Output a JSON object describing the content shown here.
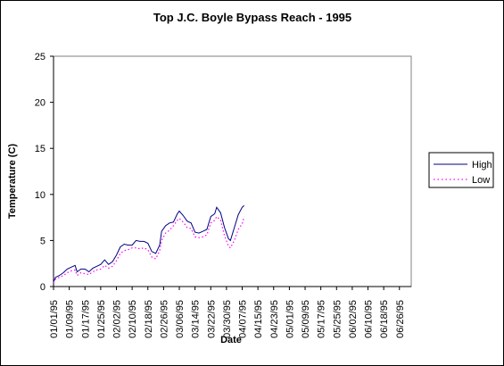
{
  "chart_data": {
    "type": "line",
    "title": "Top J.C. Boyle Bypass Reach - 1995",
    "xlabel": "Date",
    "ylabel": "Temperature (C)",
    "ylim": [
      0,
      25
    ],
    "yticks": [
      0,
      5,
      10,
      15,
      20,
      25
    ],
    "x_tick_labels": [
      "01/01/95",
      "01/09/95",
      "01/17/95",
      "01/25/95",
      "02/02/95",
      "02/10/95",
      "02/18/95",
      "02/26/95",
      "03/06/95",
      "03/14/95",
      "03/22/95",
      "03/30/95",
      "04/07/95",
      "04/15/95",
      "04/23/95",
      "05/01/95",
      "05/09/95",
      "05/17/95",
      "05/25/95",
      "06/02/95",
      "06/10/95",
      "06/18/95",
      "06/26/95"
    ],
    "x_day_range": [
      0,
      182
    ],
    "grid": false,
    "legend_position": "right",
    "series": [
      {
        "name": "High",
        "color": "#000080",
        "style": "solid",
        "points": [
          [
            0,
            0.5
          ],
          [
            1,
            1
          ],
          [
            3,
            1.2
          ],
          [
            5,
            1.5
          ],
          [
            7,
            1.9
          ],
          [
            9,
            2.1
          ],
          [
            11,
            2.3
          ],
          [
            12,
            1.6
          ],
          [
            14,
            1.9
          ],
          [
            16,
            1.9
          ],
          [
            18,
            1.6
          ],
          [
            20,
            2.0
          ],
          [
            22,
            2.2
          ],
          [
            24,
            2.4
          ],
          [
            26,
            2.9
          ],
          [
            28,
            2.4
          ],
          [
            30,
            2.7
          ],
          [
            32,
            3.4
          ],
          [
            34,
            4.3
          ],
          [
            36,
            4.6
          ],
          [
            38,
            4.5
          ],
          [
            40,
            4.5
          ],
          [
            42,
            5.0
          ],
          [
            44,
            4.9
          ],
          [
            46,
            4.9
          ],
          [
            48,
            4.7
          ],
          [
            50,
            3.8
          ],
          [
            52,
            3.6
          ],
          [
            54,
            4.5
          ],
          [
            55,
            6.0
          ],
          [
            57,
            6.6
          ],
          [
            59,
            6.9
          ],
          [
            61,
            7.0
          ],
          [
            63,
            7.9
          ],
          [
            64,
            8.2
          ],
          [
            66,
            7.7
          ],
          [
            68,
            7.1
          ],
          [
            70,
            6.9
          ],
          [
            72,
            5.9
          ],
          [
            74,
            5.8
          ],
          [
            76,
            6.0
          ],
          [
            78,
            6.2
          ],
          [
            80,
            7.6
          ],
          [
            82,
            7.9
          ],
          [
            83,
            8.6
          ],
          [
            85,
            8.0
          ],
          [
            87,
            6.4
          ],
          [
            89,
            5.2
          ],
          [
            90,
            5.0
          ],
          [
            92,
            6.4
          ],
          [
            94,
            7.8
          ],
          [
            96,
            8.6
          ],
          [
            97,
            8.8
          ]
        ]
      },
      {
        "name": "Low",
        "color": "#ff00ff",
        "style": "dotted",
        "points": [
          [
            0,
            0.4
          ],
          [
            1,
            0.8
          ],
          [
            3,
            1.0
          ],
          [
            5,
            1.2
          ],
          [
            7,
            1.5
          ],
          [
            9,
            1.7
          ],
          [
            11,
            1.8
          ],
          [
            12,
            1.2
          ],
          [
            14,
            1.5
          ],
          [
            16,
            1.4
          ],
          [
            18,
            1.3
          ],
          [
            20,
            1.6
          ],
          [
            22,
            1.8
          ],
          [
            24,
            1.9
          ],
          [
            26,
            2.3
          ],
          [
            28,
            2.0
          ],
          [
            30,
            2.2
          ],
          [
            32,
            2.8
          ],
          [
            34,
            3.6
          ],
          [
            36,
            3.9
          ],
          [
            38,
            4.0
          ],
          [
            40,
            4.2
          ],
          [
            42,
            4.2
          ],
          [
            44,
            4.1
          ],
          [
            46,
            4.2
          ],
          [
            48,
            4.0
          ],
          [
            50,
            3.2
          ],
          [
            52,
            3.0
          ],
          [
            54,
            3.9
          ],
          [
            55,
            5.0
          ],
          [
            57,
            5.8
          ],
          [
            59,
            6.1
          ],
          [
            61,
            6.6
          ],
          [
            63,
            7.2
          ],
          [
            64,
            7.4
          ],
          [
            66,
            7.0
          ],
          [
            68,
            6.4
          ],
          [
            70,
            6.3
          ],
          [
            72,
            5.4
          ],
          [
            74,
            5.3
          ],
          [
            76,
            5.4
          ],
          [
            78,
            5.6
          ],
          [
            80,
            6.9
          ],
          [
            82,
            7.2
          ],
          [
            83,
            7.6
          ],
          [
            85,
            7.2
          ],
          [
            87,
            5.5
          ],
          [
            89,
            4.4
          ],
          [
            90,
            4.2
          ],
          [
            92,
            5.0
          ],
          [
            94,
            6.2
          ],
          [
            96,
            6.8
          ],
          [
            97,
            7.6
          ]
        ]
      }
    ]
  }
}
